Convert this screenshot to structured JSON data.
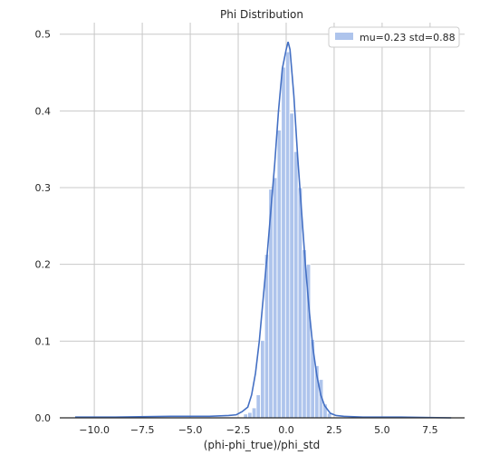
{
  "chart_data": {
    "type": "bar",
    "title": "Phi Distribution",
    "xlabel": "(phi-phi_true)/phi_std",
    "ylabel": "",
    "xlim": [
      -11.8,
      9.3
    ],
    "ylim": [
      0,
      0.515
    ],
    "grid": true,
    "legend_position": "top-right",
    "x_ticks": [
      -10.0,
      -7.5,
      -5.0,
      -2.5,
      0.0,
      2.5,
      5.0,
      7.5
    ],
    "x_tick_labels": [
      "−10.0",
      "−7.5",
      "−5.0",
      "−2.5",
      "0.0",
      "2.5",
      "5.0",
      "7.5"
    ],
    "y_ticks": [
      0.0,
      0.1,
      0.2,
      0.3,
      0.4,
      0.5
    ],
    "y_tick_labels": [
      "0.0",
      "0.1",
      "0.2",
      "0.3",
      "0.4",
      "0.5"
    ],
    "series": [
      {
        "name": "mu=0.23 std=0.88",
        "histogram": {
          "bin_width": 0.218,
          "bins": [
            {
              "x0": -2.22,
              "value": 0.005
            },
            {
              "x0": -2.0,
              "value": 0.007
            },
            {
              "x0": -1.78,
              "value": 0.013
            },
            {
              "x0": -1.56,
              "value": 0.03
            },
            {
              "x0": -1.34,
              "value": 0.101
            },
            {
              "x0": -1.12,
              "value": 0.213
            },
            {
              "x0": -0.91,
              "value": 0.298
            },
            {
              "x0": -0.69,
              "value": 0.313
            },
            {
              "x0": -0.47,
              "value": 0.375
            },
            {
              "x0": -0.25,
              "value": 0.457
            },
            {
              "x0": -0.03,
              "value": 0.477
            },
            {
              "x0": 0.18,
              "value": 0.397
            },
            {
              "x0": 0.4,
              "value": 0.347
            },
            {
              "x0": 0.62,
              "value": 0.3
            },
            {
              "x0": 0.84,
              "value": 0.219
            },
            {
              "x0": 1.05,
              "value": 0.2
            },
            {
              "x0": 1.27,
              "value": 0.102
            },
            {
              "x0": 1.49,
              "value": 0.068
            },
            {
              "x0": 1.71,
              "value": 0.05
            },
            {
              "x0": 1.92,
              "value": 0.018
            },
            {
              "x0": 2.14,
              "value": 0.006
            }
          ]
        },
        "kde": {
          "x": [
            -11.0,
            -9.0,
            -6.0,
            -4.0,
            -3.0,
            -2.6,
            -2.3,
            -2.0,
            -1.8,
            -1.6,
            -1.4,
            -1.2,
            -1.0,
            -0.8,
            -0.6,
            -0.4,
            -0.2,
            0.0,
            0.1,
            0.2,
            0.3,
            0.4,
            0.6,
            0.8,
            1.0,
            1.2,
            1.4,
            1.6,
            1.8,
            2.0,
            2.3,
            2.6,
            3.0,
            4.0,
            6.0,
            8.6
          ],
          "y": [
            0.001,
            0.001,
            0.002,
            0.002,
            0.003,
            0.004,
            0.008,
            0.014,
            0.03,
            0.058,
            0.1,
            0.155,
            0.21,
            0.27,
            0.33,
            0.4,
            0.455,
            0.48,
            0.49,
            0.48,
            0.45,
            0.42,
            0.34,
            0.27,
            0.2,
            0.14,
            0.09,
            0.055,
            0.03,
            0.016,
            0.006,
            0.003,
            0.002,
            0.001,
            0.001,
            0.0
          ]
        }
      }
    ]
  },
  "colors": {
    "bar_fill": "#4c72b0",
    "bar_fill_light": "#aec4ec",
    "kde_line": "#4470c4",
    "grid": "#c8c8c8",
    "axis": "#262626",
    "legend_border": "#cccccc",
    "legend_bg": "#ffffff"
  }
}
